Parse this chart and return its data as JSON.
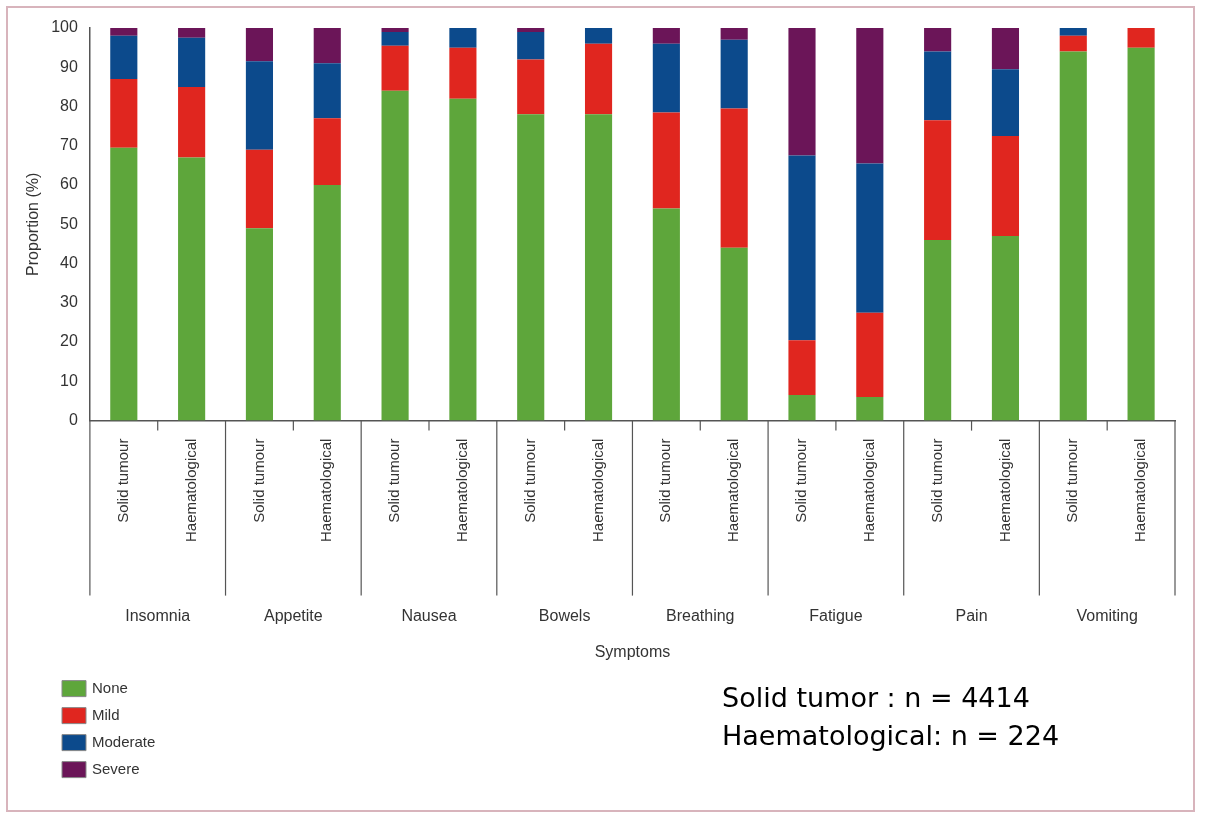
{
  "chart_data": {
    "type": "bar",
    "stacked": true,
    "ylabel": "Proportion (%)",
    "categories": [
      "Solid tumour",
      "Haematological",
      "Solid tumour",
      "Haematological",
      "Solid tumour",
      "Haematological",
      "Solid tumour",
      "Haematological",
      "Solid tumour",
      "Haematological",
      "Solid tumour",
      "Haematological",
      "Solid tumour",
      "Haematological",
      "Solid tumour",
      "Haematological"
    ],
    "series": [
      {
        "name": "None",
        "color": "#5ea63b",
        "values": [
          69.5,
          67,
          49,
          60,
          84,
          82,
          78,
          78,
          54,
          44,
          6.5,
          6,
          46,
          47,
          94,
          95
        ]
      },
      {
        "name": "Mild",
        "color": "#e0261f",
        "values": [
          17.5,
          18,
          20,
          17,
          11.5,
          13,
          14,
          18,
          24.5,
          35.5,
          14,
          21.5,
          30.5,
          25.5,
          4,
          5
        ]
      },
      {
        "name": "Moderate",
        "color": "#0c4a8c",
        "values": [
          11,
          12.5,
          22.5,
          14,
          3.5,
          5,
          7,
          4,
          17.5,
          17.5,
          47,
          38,
          17.5,
          17,
          2,
          0
        ]
      },
      {
        "name": "Severe",
        "color": "#6b1558",
        "values": [
          2,
          2.5,
          8.5,
          9,
          1,
          0,
          1,
          0,
          4,
          3,
          32.5,
          34.5,
          6,
          10.5,
          0,
          0
        ]
      }
    ],
    "ylim": [
      0,
      100
    ],
    "yticks": [
      0,
      10,
      20,
      30,
      40,
      50,
      60,
      70,
      80,
      90,
      100
    ],
    "grid": false,
    "legend": "bottom left",
    "annotations": [
      "Insomnia",
      "Appetite",
      "Nausea",
      "Bowels",
      "Breathing",
      "Fatigue",
      "Pain",
      "Vomiting",
      "Symptoms",
      "Solid tumor : n = 4414",
      "Haematological: n = 224"
    ]
  }
}
